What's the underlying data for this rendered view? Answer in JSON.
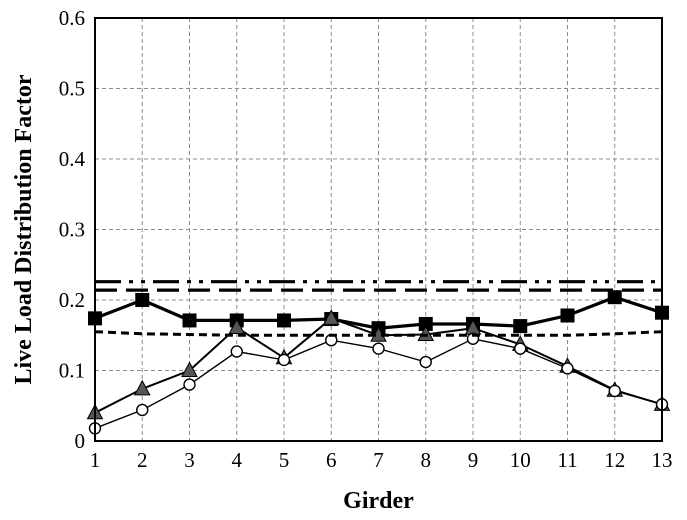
{
  "chart_data": {
    "type": "line",
    "title": "",
    "xlabel": "Girder",
    "ylabel": "Live Load Distribution Factor",
    "x": [
      1,
      2,
      3,
      4,
      5,
      6,
      7,
      8,
      9,
      10,
      11,
      12,
      13
    ],
    "xlim": [
      1,
      13
    ],
    "ylim": [
      0,
      0.6
    ],
    "yticks": [
      "0",
      "0.1",
      "0.2",
      "0.3",
      "0.4",
      "0.5",
      "0.6"
    ],
    "xticks": [
      "1",
      "2",
      "3",
      "4",
      "5",
      "6",
      "7",
      "8",
      "9",
      "10",
      "11",
      "12",
      "13"
    ],
    "grid": true,
    "legend": false,
    "series": [
      {
        "marker": "square",
        "line": "solid-thick",
        "color": "#000000",
        "values": [
          0.174,
          0.2,
          0.171,
          0.171,
          0.171,
          0.173,
          0.16,
          0.166,
          0.166,
          0.163,
          0.178,
          0.204,
          0.182
        ]
      },
      {
        "marker": "triangle",
        "line": "solid",
        "color": "#000000",
        "marker_color": "#555555",
        "values": [
          0.04,
          0.074,
          0.1,
          0.161,
          0.118,
          0.174,
          0.15,
          0.151,
          0.16,
          0.137,
          0.106,
          0.072,
          0.052
        ]
      },
      {
        "marker": "open-circle",
        "line": "solid-thin",
        "color": "#000000",
        "values": [
          0.018,
          0.044,
          0.08,
          0.127,
          0.115,
          0.143,
          0.131,
          0.112,
          0.145,
          0.131,
          0.103,
          0.071,
          0.052
        ]
      },
      {
        "marker": "none",
        "line": "dash",
        "color": "#000000",
        "values": [
          0.155,
          0.152,
          0.151,
          0.15,
          0.15,
          0.15,
          0.15,
          0.15,
          0.15,
          0.15,
          0.15,
          0.152,
          0.155
        ]
      },
      {
        "marker": "none",
        "line": "long-dash",
        "color": "#000000",
        "values": [
          0.214,
          0.214,
          0.214,
          0.214,
          0.214,
          0.214,
          0.214,
          0.214,
          0.214,
          0.214,
          0.214,
          0.214,
          0.214
        ]
      },
      {
        "marker": "none",
        "line": "dash-dot-dot",
        "color": "#000000",
        "values": [
          0.226,
          0.226,
          0.226,
          0.226,
          0.226,
          0.226,
          0.226,
          0.226,
          0.226,
          0.226,
          0.226,
          0.226,
          0.226
        ]
      }
    ]
  }
}
